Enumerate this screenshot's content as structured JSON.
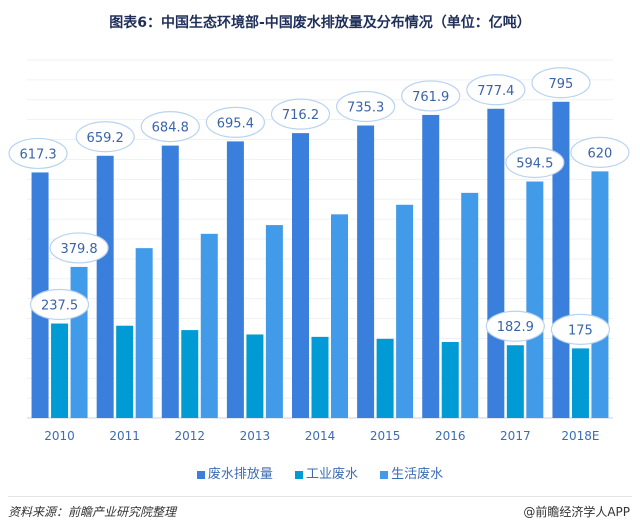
{
  "title": "图表6：中国生态环境部-中国废水排放量及分布情况（单位：亿吨）",
  "chart_data": {
    "type": "bar",
    "title": "图表6：中国生态环境部-中国废水排放量及分布情况（单位：亿吨）",
    "categories": [
      "2010",
      "2011",
      "2012",
      "2013",
      "2014",
      "2015",
      "2016",
      "2017",
      "2018E"
    ],
    "series": [
      {
        "name": "废水排放量",
        "color": "#3b7fdc",
        "values": [
          617.3,
          659.2,
          684.8,
          695.4,
          716.2,
          735.3,
          761.9,
          777.4,
          795
        ],
        "labels": [
          "617.3",
          "659.2",
          "684.8",
          "695.4",
          "716.2",
          "735.3",
          "761.9",
          "777.4",
          "795"
        ]
      },
      {
        "name": "工业废水",
        "color": "#009bd4",
        "values": [
          237.5,
          232,
          221,
          210,
          204,
          199,
          191,
          182.9,
          175
        ],
        "labels": [
          "237.5",
          "",
          "",
          "",
          "",
          "",
          "",
          "182.9",
          "175"
        ]
      },
      {
        "name": "生活废水",
        "color": "#419be8",
        "values": [
          379.8,
          427,
          463,
          485,
          512,
          536,
          566,
          594.5,
          620
        ],
        "labels": [
          "379.8",
          "",
          "",
          "",
          "",
          "",
          "",
          "594.5",
          "620"
        ]
      }
    ],
    "ylim": [
      0,
      900
    ],
    "grid": true,
    "legend": "bottom"
  },
  "source": "资料来源：前瞻产业研究院整理",
  "brand": "@前瞻经济学人APP"
}
